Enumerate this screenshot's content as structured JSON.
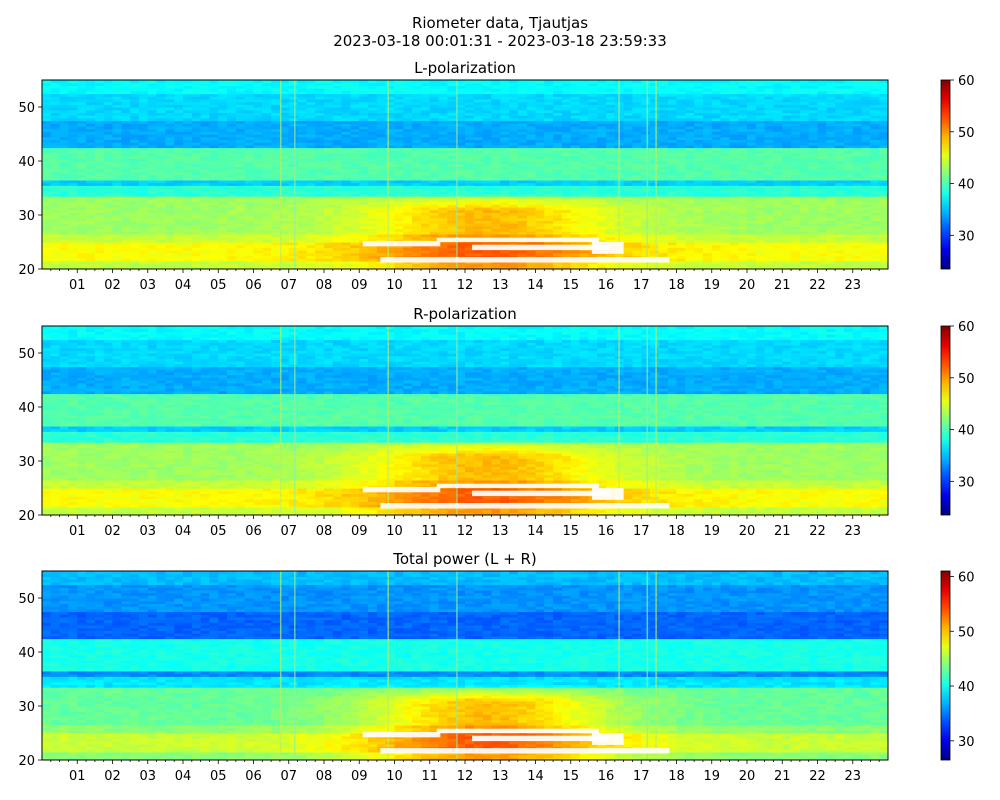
{
  "figure": {
    "suptitle_line1": "Riometer data, Tjautjas",
    "suptitle_line2": "2023-03-18 00:01:31 - 2023-03-18 23:59:33"
  },
  "chart_data": [
    {
      "type": "heatmap",
      "title": "L-polarization",
      "xlabel": "",
      "ylabel": "",
      "x_ticks": [
        "01",
        "02",
        "03",
        "04",
        "05",
        "06",
        "07",
        "08",
        "09",
        "10",
        "11",
        "12",
        "13",
        "14",
        "15",
        "16",
        "17",
        "18",
        "19",
        "20",
        "21",
        "22",
        "23"
      ],
      "x_range_hours": [
        0,
        24
      ],
      "y_ticks": [
        20,
        30,
        40,
        50
      ],
      "ylim": [
        20,
        55
      ],
      "colormap": "jet",
      "colorbar_ticks": [
        30,
        40,
        50,
        60
      ],
      "colorbar_range": [
        23.5,
        60
      ],
      "saturated_white_regions": true,
      "grid": false
    },
    {
      "type": "heatmap",
      "title": "R-polarization",
      "xlabel": "",
      "ylabel": "",
      "x_ticks": [
        "01",
        "02",
        "03",
        "04",
        "05",
        "06",
        "07",
        "08",
        "09",
        "10",
        "11",
        "12",
        "13",
        "14",
        "15",
        "16",
        "17",
        "18",
        "19",
        "20",
        "21",
        "22",
        "23"
      ],
      "x_range_hours": [
        0,
        24
      ],
      "y_ticks": [
        20,
        30,
        40,
        50
      ],
      "ylim": [
        20,
        55
      ],
      "colormap": "jet",
      "colorbar_ticks": [
        30,
        40,
        50,
        60
      ],
      "colorbar_range": [
        23.5,
        60
      ],
      "saturated_white_regions": true,
      "grid": false
    },
    {
      "type": "heatmap",
      "title": "Total power (L + R)",
      "xlabel": "",
      "ylabel": "",
      "x_ticks": [
        "01",
        "02",
        "03",
        "04",
        "05",
        "06",
        "07",
        "08",
        "09",
        "10",
        "11",
        "12",
        "13",
        "14",
        "15",
        "16",
        "17",
        "18",
        "19",
        "20",
        "21",
        "22",
        "23"
      ],
      "x_range_hours": [
        0,
        24
      ],
      "y_ticks": [
        20,
        30,
        40,
        50
      ],
      "ylim": [
        20,
        55
      ],
      "colormap": "jet",
      "colorbar_ticks": [
        30,
        40,
        50,
        60
      ],
      "colorbar_range": [
        26.5,
        61
      ],
      "saturated_white_regions": true,
      "grid": false
    }
  ]
}
